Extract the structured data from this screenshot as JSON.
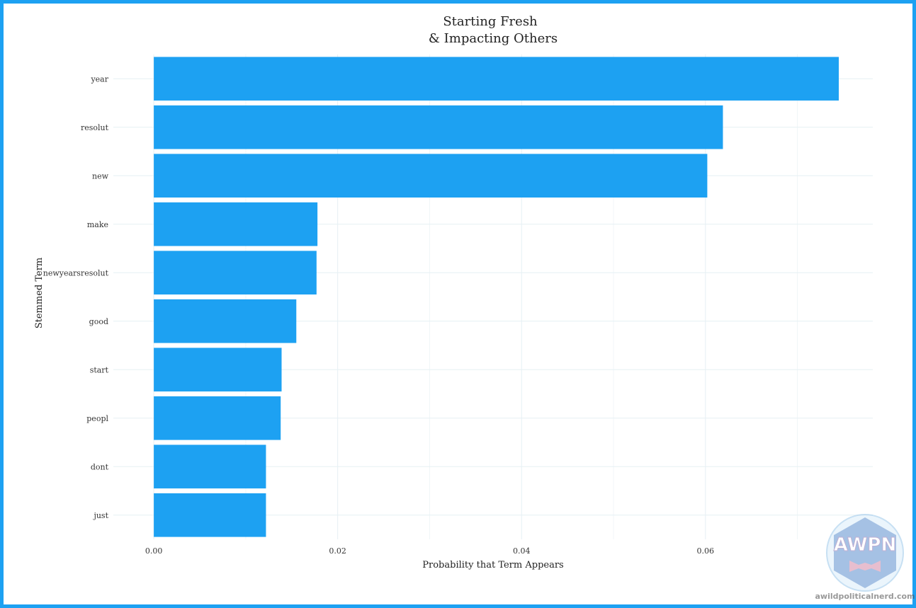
{
  "chart_data": {
    "type": "bar",
    "orientation": "horizontal",
    "title": "Starting Fresh\n& Impacting Others",
    "xlabel": "Probability that Term Appears",
    "ylabel": "Stemmed Term",
    "categories": [
      "year",
      "resolut",
      "new",
      "make",
      "newyearsresolut",
      "good",
      "start",
      "peopl",
      "dont",
      "just"
    ],
    "values": [
      0.0745,
      0.0619,
      0.0602,
      0.0178,
      0.0177,
      0.0155,
      0.0139,
      0.0138,
      0.0122,
      0.0122
    ],
    "xlim": [
      -0.0044,
      0.0782
    ],
    "xticks": [
      0.0,
      0.02,
      0.04,
      0.06
    ],
    "xtick_labels": [
      "0.00",
      "0.02",
      "0.04",
      "0.06"
    ],
    "grid": true,
    "bar_color": "#1da1f2"
  },
  "watermark": {
    "logo_text": "AWPN",
    "site_text": "awildpoliticalnerd.com"
  },
  "colors": {
    "frame": "#1da1f2",
    "bar": "#1da1f2",
    "grid": "#e6f0f4"
  }
}
